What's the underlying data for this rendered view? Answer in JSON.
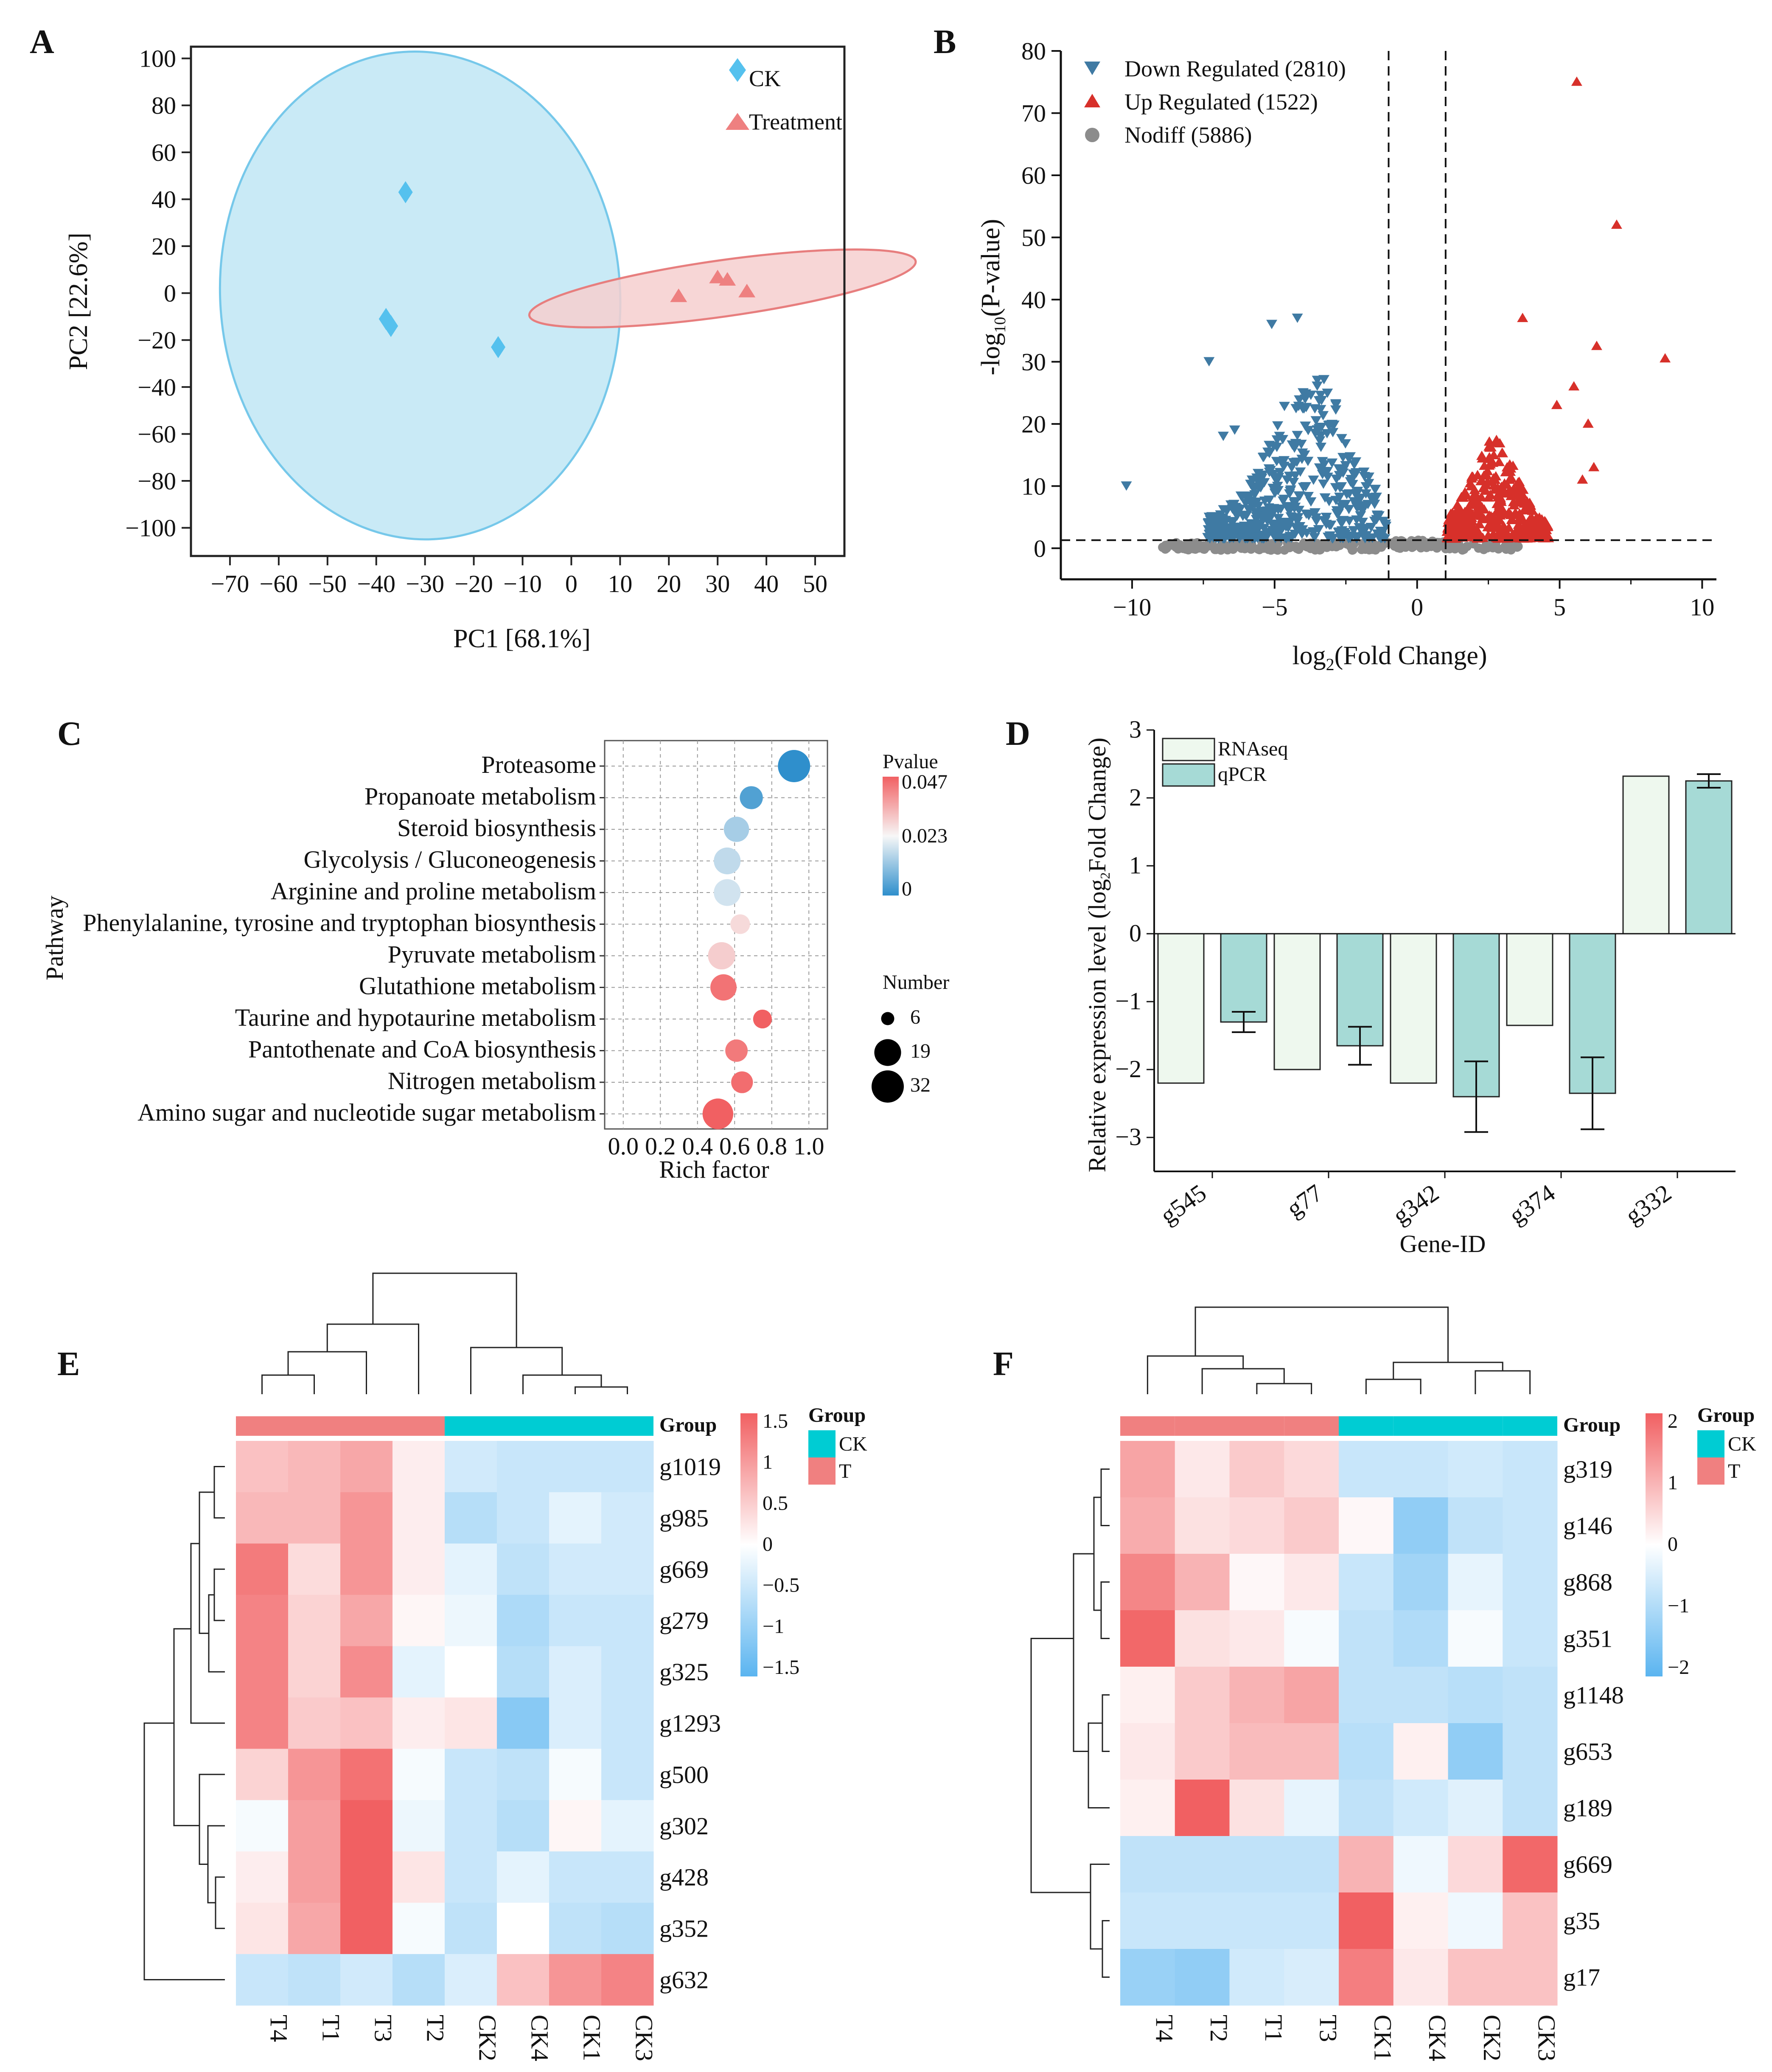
{
  "colors": {
    "ck_fill": "#bfe6f5",
    "ck_edge": "#76c8ea",
    "ck_point": "#55c1ee",
    "t_fill": "#f6cfcf",
    "t_edge": "#e77e7e",
    "t_point": "#ee8080",
    "down": "#3f7aa3",
    "up": "#d7302a",
    "nodiff": "#8c8c8c",
    "rnaseq": "#eef8ee",
    "qpcr": "#a6dad6",
    "group_ck": "#00ccd3",
    "group_t": "#f08080",
    "heat_low": "#5ab4f0",
    "heat_mid": "#ffffff",
    "heat_high": "#f16062"
  },
  "panels": {
    "a": "A",
    "b": "B",
    "c": "C",
    "d": "D",
    "e": "E",
    "f": "F"
  },
  "chart_data": [
    {
      "id": "A",
      "type": "scatter",
      "title": "",
      "xlabel": "PC1 [68.1%]",
      "ylabel": "PC2 [22.6%]",
      "xlim": [
        -78,
        56
      ],
      "ylim": [
        -112,
        105
      ],
      "xticks": [
        -70,
        -60,
        -50,
        -40,
        -30,
        -20,
        -10,
        0,
        10,
        20,
        30,
        40,
        50
      ],
      "yticks": [
        100,
        80,
        60,
        40,
        20,
        0,
        -20,
        -40,
        -60,
        -80,
        -100
      ],
      "xtick_labels": [
        "−70",
        "−60",
        "−50",
        "−40",
        "−30",
        "−20",
        "−10",
        "0",
        "10",
        "20",
        "30",
        "40",
        "50"
      ],
      "ytick_labels": [
        "100",
        "80",
        "60",
        "40",
        "20",
        "0",
        "−20",
        "−40",
        "−60",
        "−80",
        "−100"
      ],
      "series": [
        {
          "name": "CK",
          "marker": "diamond",
          "points": [
            [
              -34,
              43
            ],
            [
              -38,
              -11
            ],
            [
              -37,
              -14
            ],
            [
              -15,
              -23
            ]
          ],
          "ellipse": {
            "cx": -31,
            "cy": -1,
            "rx": 41,
            "ry": 104,
            "rotate_deg": -4
          }
        },
        {
          "name": "Treatment",
          "marker": "triangle",
          "points": [
            [
              22,
              -2
            ],
            [
              30,
              6
            ],
            [
              32,
              5
            ],
            [
              36,
              0
            ]
          ],
          "ellipse": {
            "cx": 31,
            "cy": 2,
            "rx": 40,
            "ry": 12,
            "rotate_deg": -8
          }
        }
      ]
    },
    {
      "id": "B",
      "type": "scatter",
      "title": "",
      "xlabel_parts": [
        "log",
        "2",
        "(Fold Change)"
      ],
      "ylabel_parts": [
        "-log",
        "10",
        "(P-value)"
      ],
      "xlim": [
        -12.5,
        10.5
      ],
      "ylim": [
        -5,
        80
      ],
      "xticks": [
        -10,
        -5,
        0,
        5,
        10
      ],
      "yticks": [
        0,
        10,
        20,
        30,
        40,
        50,
        60,
        70,
        80
      ],
      "xtick_labels": [
        "−10",
        "−5",
        "0",
        "5",
        "10"
      ],
      "ytick_labels": [
        "0",
        "10",
        "20",
        "30",
        "40",
        "50",
        "60",
        "70",
        "80"
      ],
      "thresholds": {
        "fc": [
          -1,
          1
        ],
        "p": 1.3
      },
      "legend": [
        "Down Regulated (2810)",
        "Up Regulated (1522)",
        "Nodiff (5886)"
      ],
      "counts": {
        "down": 2810,
        "up": 1522,
        "nodiff": 5886
      },
      "outliers_down": [
        [
          -10.2,
          10
        ],
        [
          -7.3,
          30
        ],
        [
          -5.1,
          36
        ],
        [
          -4.2,
          37
        ],
        [
          -6.8,
          18
        ],
        [
          -6.4,
          19
        ],
        [
          -4.0,
          25
        ],
        [
          -3.5,
          27
        ]
      ],
      "outliers_up": [
        [
          5.6,
          75
        ],
        [
          7.0,
          52
        ],
        [
          8.7,
          30.5
        ],
        [
          3.7,
          37
        ],
        [
          6.3,
          32.5
        ],
        [
          5.5,
          26
        ],
        [
          4.9,
          23
        ],
        [
          6.0,
          20
        ],
        [
          6.2,
          13
        ],
        [
          5.8,
          11
        ]
      ]
    },
    {
      "id": "C",
      "type": "scatter",
      "title": "",
      "xlabel": "Rich factor",
      "ylabel": "Pathway",
      "xlim": [
        -0.1,
        1.1
      ],
      "xticks": [
        0.0,
        0.2,
        0.4,
        0.6,
        0.8,
        1.0
      ],
      "xtick_labels": [
        "0.0",
        "0.2",
        "0.4",
        "0.6",
        "0.8",
        "1.0"
      ],
      "color_legend_title": "Pvalue",
      "color_ticks": [
        "0.047",
        "0.023",
        "0"
      ],
      "size_legend_title": "Number",
      "size_ticks": [
        6,
        19,
        32
      ],
      "pathways": [
        {
          "name": "Proteasome",
          "rich": 0.92,
          "p": 0.0,
          "n": 32
        },
        {
          "name": "Propanoate metabolism",
          "rich": 0.69,
          "p": 0.004,
          "n": 12
        },
        {
          "name": "Steroid biosynthesis",
          "rich": 0.61,
          "p": 0.014,
          "n": 16
        },
        {
          "name": "Glycolysis / Gluconeogenesis",
          "rich": 0.56,
          "p": 0.017,
          "n": 19
        },
        {
          "name": "Arginine and proline metabolism",
          "rich": 0.56,
          "p": 0.019,
          "n": 19
        },
        {
          "name": "Phenylalanine, tyrosine and tryptophan biosynthesis",
          "rich": 0.63,
          "p": 0.028,
          "n": 7
        },
        {
          "name": "Pyruvate metabolism",
          "rich": 0.53,
          "p": 0.03,
          "n": 20
        },
        {
          "name": "Glutathione metabolism",
          "rich": 0.54,
          "p": 0.044,
          "n": 18
        },
        {
          "name": "Taurine and hypotaurine metabolism",
          "rich": 0.75,
          "p": 0.047,
          "n": 6
        },
        {
          "name": "Pantothenate and CoA biosynthesis",
          "rich": 0.61,
          "p": 0.043,
          "n": 11
        },
        {
          "name": "Nitrogen metabolism",
          "rich": 0.64,
          "p": 0.045,
          "n": 10
        },
        {
          "name": "Amino sugar and nucleotide sugar metabolism",
          "rich": 0.51,
          "p": 0.047,
          "n": 28
        }
      ]
    },
    {
      "id": "D",
      "type": "bar",
      "title": "",
      "xlabel": "Gene-ID",
      "ylabel_parts": [
        "Relative expression level (log",
        "2",
        "Fold Change)"
      ],
      "ylim": [
        -3.5,
        3
      ],
      "yticks": [
        3,
        2,
        1,
        0,
        -1,
        -2,
        -3
      ],
      "ytick_labels": [
        "3",
        "2",
        "1",
        "0",
        "−1",
        "−2",
        "−3"
      ],
      "categories": [
        "g545",
        "g77",
        "g342",
        "g374",
        "g332"
      ],
      "series": [
        {
          "name": "RNAseq",
          "values": [
            -2.2,
            -2.0,
            -2.2,
            -1.35,
            2.32
          ]
        },
        {
          "name": "qPCR",
          "values": [
            -1.3,
            -1.65,
            -2.4,
            -2.35,
            2.25
          ],
          "errors": [
            0.15,
            0.28,
            0.52,
            0.53,
            0.1
          ]
        }
      ]
    },
    {
      "id": "E",
      "type": "heatmap",
      "title": "",
      "group_title": "Group",
      "group_legend": [
        "CK",
        "T"
      ],
      "scale_ticks": [
        1.5,
        1,
        0.5,
        0,
        -0.5,
        -1,
        -1.5
      ],
      "scale_labels": [
        "1.5",
        "1",
        "0.5",
        "0",
        "−0.5",
        "−1",
        "−1.5"
      ],
      "columns": [
        "T4",
        "T1",
        "T3",
        "T2",
        "CK2",
        "CK4",
        "CK1",
        "CK3"
      ],
      "column_groups": [
        "T",
        "T",
        "T",
        "T",
        "CK",
        "CK",
        "CK",
        "CK"
      ],
      "rows": [
        "g1019",
        "g985",
        "g669",
        "g279",
        "g325",
        "g1293",
        "g500",
        "g302",
        "g428",
        "g352",
        "g632"
      ],
      "values": [
        [
          0.7,
          0.8,
          1.0,
          0.2,
          -0.5,
          -0.6,
          -0.6,
          -0.6
        ],
        [
          0.8,
          0.8,
          1.2,
          0.2,
          -0.8,
          -0.6,
          -0.3,
          -0.5
        ],
        [
          1.5,
          0.4,
          1.2,
          0.2,
          -0.3,
          -0.7,
          -0.5,
          -0.5
        ],
        [
          1.4,
          0.5,
          1.0,
          0.1,
          -0.2,
          -0.9,
          -0.6,
          -0.6
        ],
        [
          1.4,
          0.5,
          1.3,
          -0.3,
          0.0,
          -0.8,
          -0.4,
          -0.6
        ],
        [
          1.4,
          0.6,
          0.7,
          0.2,
          0.3,
          -1.3,
          -0.4,
          -0.6
        ],
        [
          0.5,
          1.2,
          1.6,
          -0.1,
          -0.6,
          -0.7,
          -0.1,
          -0.6
        ],
        [
          -0.1,
          1.1,
          1.8,
          -0.2,
          -0.6,
          -0.8,
          0.1,
          -0.3
        ],
        [
          0.2,
          1.1,
          1.8,
          0.3,
          -0.6,
          -0.3,
          -0.6,
          -0.6
        ],
        [
          0.3,
          1.0,
          1.8,
          -0.1,
          -0.7,
          0.0,
          -0.7,
          -0.8
        ],
        [
          -0.6,
          -0.7,
          -0.5,
          -0.8,
          -0.4,
          0.7,
          1.2,
          1.4
        ]
      ],
      "legend_pos": "right"
    },
    {
      "id": "F",
      "type": "heatmap",
      "title": "",
      "group_title": "Group",
      "group_legend": [
        "CK",
        "T"
      ],
      "scale_ticks": [
        2,
        1,
        0,
        -1,
        -2
      ],
      "scale_labels": [
        "2",
        "1",
        "0",
        "−1",
        "−2"
      ],
      "columns": [
        "T4",
        "T2",
        "T1",
        "T3",
        "CK1",
        "CK4",
        "CK2",
        "CK3"
      ],
      "column_groups": [
        "T",
        "T",
        "T",
        "T",
        "CK",
        "CK",
        "CK",
        "CK"
      ],
      "rows": [
        "g319",
        "g146",
        "g868",
        "g351",
        "g1148",
        "g653",
        "g189",
        "g669",
        "g35",
        "g17"
      ],
      "values": [
        [
          1.2,
          0.3,
          0.7,
          0.5,
          -0.7,
          -0.7,
          -0.6,
          -0.7
        ],
        [
          1.1,
          0.4,
          0.5,
          0.7,
          0.1,
          -1.4,
          -0.8,
          -0.7
        ],
        [
          1.6,
          1.0,
          0.1,
          0.3,
          -0.7,
          -1.2,
          -0.3,
          -0.7
        ],
        [
          2.0,
          0.4,
          0.3,
          -0.1,
          -0.8,
          -1.0,
          -0.1,
          -0.7
        ],
        [
          0.2,
          0.7,
          1.0,
          1.2,
          -0.8,
          -0.8,
          -0.9,
          -0.8
        ],
        [
          0.3,
          0.7,
          0.9,
          0.9,
          -0.9,
          0.2,
          -1.4,
          -0.8
        ],
        [
          0.2,
          2.1,
          0.4,
          -0.3,
          -0.8,
          -0.6,
          -0.4,
          -0.8
        ],
        [
          -0.8,
          -0.8,
          -0.8,
          -0.8,
          1.0,
          -0.2,
          0.5,
          2.0
        ],
        [
          -0.7,
          -0.7,
          -0.7,
          -0.7,
          2.1,
          0.2,
          -0.2,
          0.8
        ],
        [
          -1.3,
          -1.4,
          -0.6,
          -0.5,
          1.7,
          0.3,
          0.8,
          0.8
        ]
      ],
      "legend_pos": "right"
    }
  ]
}
